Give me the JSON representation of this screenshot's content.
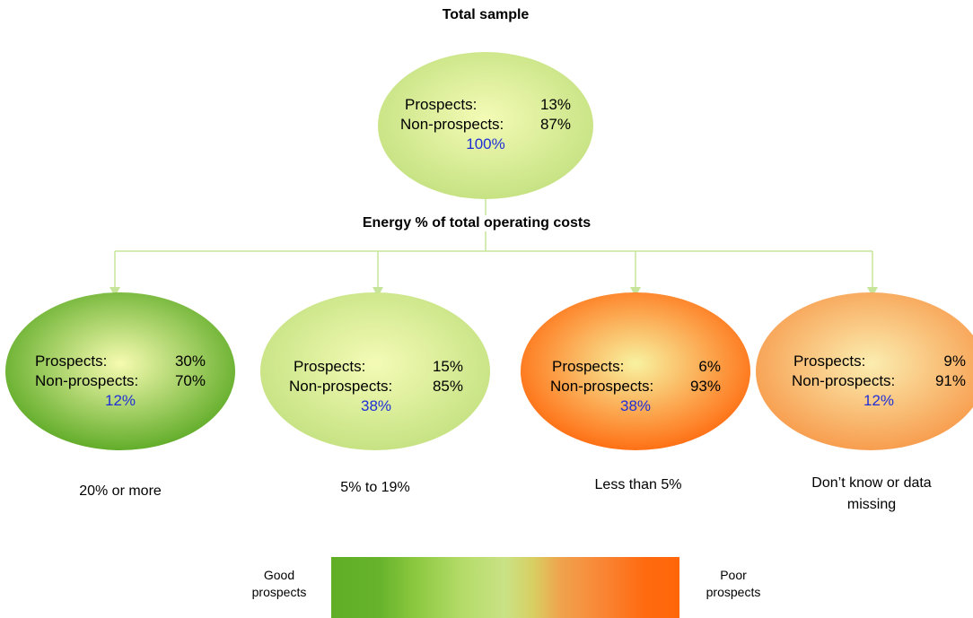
{
  "root": {
    "title": "Total sample",
    "prospects_label": "Prospects:",
    "prospects_value": "13%",
    "nonprospects_label": "Non-prospects:",
    "nonprospects_value": "87%",
    "share": "100%",
    "fill_center": "#f4fbb6",
    "fill_edge": "#c2e07e"
  },
  "split_label": "Energy % of total operating costs",
  "branches": [
    {
      "prospects_label": "Prospects:",
      "prospects_value": "30%",
      "nonprospects_label": "Non-prospects:",
      "nonprospects_value": "70%",
      "share": "12%",
      "label_lines": [
        "20% or more"
      ],
      "fill_center": "#f6fbb0",
      "fill_edge": "#55a61e"
    },
    {
      "prospects_label": "Prospects:",
      "prospects_value": "15%",
      "nonprospects_label": "Non-prospects:",
      "nonprospects_value": "85%",
      "share": "38%",
      "label_lines": [
        "5% to 19%"
      ],
      "fill_center": "#f4fbb6",
      "fill_edge": "#c2e07e"
    },
    {
      "prospects_label": "Prospects:",
      "prospects_value": "6%",
      "nonprospects_label": "Non-prospects:",
      "nonprospects_value": "93%",
      "share": "38%",
      "label_lines": [
        "Less than 5%"
      ],
      "fill_center": "#f8f2a0",
      "fill_edge": "#ff6408"
    },
    {
      "prospects_label": "Prospects:",
      "prospects_value": "9%",
      "nonprospects_label": "Non-prospects:",
      "nonprospects_value": "91%",
      "share": "12%",
      "label_lines": [
        "Don’t know or data",
        "missing"
      ],
      "fill_center": "#fbedb0",
      "fill_edge": "#f79646"
    }
  ],
  "legend": {
    "left_lines": [
      "Good",
      "prospects"
    ],
    "right_lines": [
      "Poor",
      "prospects"
    ],
    "gradient_left": "#5fae26",
    "gradient_mid": "#c9e285",
    "gradient_right": "#ff6608"
  },
  "connector_color": "#c6e59b"
}
